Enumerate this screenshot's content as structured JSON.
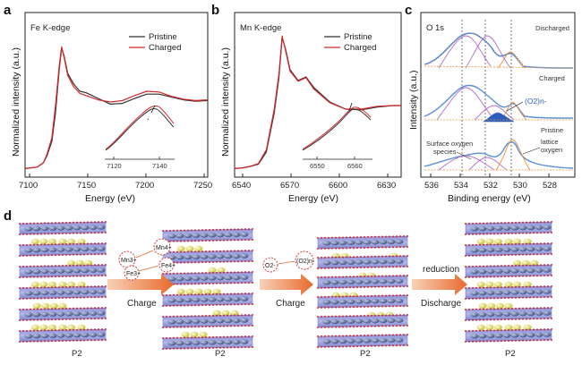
{
  "panels": {
    "a": {
      "letter": "a",
      "edge_label": "Fe K-edge",
      "xlabel": "Energy (eV)",
      "ylabel": "Normalized intensity (a.u.)",
      "xticks": [
        "7100",
        "7150",
        "7200",
        "7250"
      ],
      "inset_ticks": [
        "7120",
        "7140"
      ]
    },
    "b": {
      "letter": "b",
      "edge_label": "Mn K-edge",
      "xlabel": "Energy (eV)",
      "ylabel": "Normalized intensity (a.u.)",
      "xticks": [
        "6540",
        "6570",
        "6600",
        "6630"
      ],
      "inset_ticks": [
        "6550",
        "6560"
      ]
    },
    "c": {
      "letter": "c",
      "title": "O 1s",
      "xlabel": "Binding energy (eV)",
      "ylabel": "Intensity (a.u.)",
      "xticks": [
        "536",
        "534",
        "532",
        "530",
        "528"
      ],
      "states": [
        "Discharged",
        "Charged",
        "Pristine"
      ],
      "peroxo": "(O2)n-",
      "surface_label_1": "Surface oxygen",
      "surface_label_2": "species",
      "lattice_label_1": "lattice",
      "lattice_label_2": "oxygen"
    },
    "d": {
      "letter": "d",
      "phase_labels": [
        "P2",
        "P2",
        "P2",
        "P2"
      ],
      "arrows": [
        "Charge",
        "Charge",
        "reduction",
        "Discharge"
      ],
      "ions": [
        "Mn3+",
        "Fe3+",
        "Mn4+",
        "Fe4+",
        "O2-",
        "(O2)n-"
      ]
    }
  },
  "legend": {
    "pristine": "Pristine",
    "charged": "Charged"
  },
  "colors": {
    "pristine": "#333333",
    "charged": "#d62728",
    "blue_fit": "#5b8fd9",
    "purple_fit": "#b06ac9",
    "orange_fit": "#e8923a",
    "arrow": "#e86a2c"
  },
  "chart_data": [
    {
      "type": "line",
      "title": "Fe K-edge",
      "xlabel": "Energy (eV)",
      "ylabel": "Normalized intensity (a.u.)",
      "xlim": [
        7100,
        7250
      ],
      "series": [
        {
          "name": "Pristine",
          "x": [
            7100,
            7110,
            7115,
            7118,
            7122,
            7125,
            7128,
            7130,
            7132,
            7135,
            7140,
            7145,
            7150,
            7160,
            7170,
            7180,
            7190,
            7200,
            7210,
            7220,
            7230,
            7240,
            7250
          ],
          "y": [
            0.02,
            0.04,
            0.1,
            0.2,
            0.4,
            0.8,
            1.4,
            1.7,
            1.6,
            1.35,
            1.2,
            1.1,
            1.08,
            1.0,
            0.92,
            0.93,
            1.0,
            1.06,
            1.06,
            1.02,
            0.98,
            0.96,
            0.97
          ]
        },
        {
          "name": "Charged",
          "x": [
            7100,
            7110,
            7115,
            7118,
            7122,
            7125,
            7128,
            7130,
            7132,
            7135,
            7140,
            7145,
            7150,
            7160,
            7170,
            7180,
            7190,
            7200,
            7210,
            7220,
            7230,
            7240,
            7250
          ],
          "y": [
            0.02,
            0.04,
            0.1,
            0.22,
            0.45,
            0.9,
            1.45,
            1.72,
            1.58,
            1.32,
            1.16,
            1.07,
            1.04,
            0.98,
            0.95,
            0.97,
            1.04,
            1.1,
            1.09,
            1.03,
            0.99,
            0.97,
            0.98
          ]
        }
      ]
    },
    {
      "type": "line",
      "title": "Mn K-edge",
      "xlabel": "Energy (eV)",
      "ylabel": "Normalized intensity (a.u.)",
      "xlim": [
        6530,
        6635
      ],
      "series": [
        {
          "name": "Pristine",
          "x": [
            6530,
            6535,
            6540,
            6545,
            6550,
            6555,
            6558,
            6560,
            6562,
            6565,
            6570,
            6575,
            6580,
            6590,
            6600,
            6610,
            6620,
            6630,
            6635
          ],
          "y": [
            0.02,
            0.03,
            0.05,
            0.08,
            0.25,
            0.8,
            1.3,
            1.85,
            1.7,
            1.4,
            1.25,
            1.3,
            1.15,
            0.95,
            0.85,
            0.84,
            0.88,
            0.9,
            0.9
          ]
        },
        {
          "name": "Charged",
          "x": [
            6530,
            6535,
            6540,
            6545,
            6550,
            6555,
            6558,
            6560,
            6562,
            6565,
            6570,
            6575,
            6580,
            6590,
            6600,
            6610,
            6620,
            6630,
            6635
          ],
          "y": [
            0.02,
            0.03,
            0.05,
            0.09,
            0.28,
            0.85,
            1.35,
            1.87,
            1.68,
            1.38,
            1.24,
            1.29,
            1.13,
            0.94,
            0.85,
            0.85,
            0.89,
            0.9,
            0.9
          ]
        }
      ]
    }
  ]
}
